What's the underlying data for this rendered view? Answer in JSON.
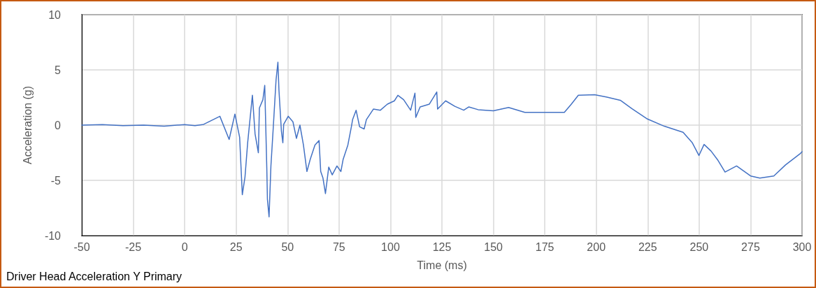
{
  "chart_data": {
    "type": "line",
    "title": "Driver Head Acceleration Y Primary",
    "xlabel": "Time (ms)",
    "ylabel": "Acceleration (g)",
    "xlim": [
      -50,
      300
    ],
    "xticks": [
      -50,
      -25,
      0,
      25,
      50,
      75,
      100,
      125,
      150,
      175,
      200,
      225,
      250,
      275,
      300
    ],
    "ylim": [
      -10,
      10
    ],
    "yticks": [
      -10,
      -5,
      0,
      5,
      10
    ],
    "grid": true,
    "marker": "none",
    "line_style": "solid",
    "series": [
      {
        "color": "#4472c4",
        "x": [
          -50,
          -40,
          -30,
          -20,
          -10,
          0,
          5,
          9.2,
          17.1,
          21.6,
          24.4,
          26.7,
          28.0,
          29.3,
          30.6,
          32.9,
          34.2,
          35.8,
          36.3,
          38.0,
          38.9,
          39.9,
          40.2,
          41.0,
          41.9,
          43.0,
          44.4,
          45.3,
          45.8,
          47.0,
          47.7,
          48.1,
          50.3,
          52.6,
          54.3,
          56.0,
          57.7,
          59.4,
          61.0,
          63.3,
          65.3,
          66.1,
          67.2,
          68.4,
          70.0,
          71.7,
          74.0,
          75.9,
          77.0,
          79.3,
          81.0,
          81.6,
          83.3,
          85.0,
          87.2,
          88.3,
          91.7,
          95.1,
          98.5,
          101.9,
          103.6,
          106.4,
          109.8,
          111.9,
          112.3,
          114.4,
          118.9,
          122.5,
          122.9,
          126.8,
          131.3,
          135.6,
          138.1,
          142.6,
          150,
          157.4,
          165.3,
          174.9,
          184.5,
          187.9,
          191.3,
          199.2,
          204.9,
          211.7,
          217.3,
          224.9,
          233.1,
          242.2,
          246.7,
          249.9,
          252.4,
          255.8,
          259.2,
          262.6,
          268.2,
          275.0,
          279.5,
          286.3,
          292.0,
          299.3,
          300
        ],
        "values": [
          0,
          0.05,
          -0.05,
          0,
          -0.1,
          0.05,
          -0.05,
          0.07,
          0.8,
          -1.3,
          1.0,
          -1.1,
          -6.3,
          -4.7,
          -1.6,
          2.7,
          -0.8,
          -2.5,
          1.55,
          2.3,
          3.6,
          -3.9,
          -6.7,
          -8.3,
          -3.7,
          -0.35,
          4.1,
          5.7,
          3.2,
          -0.55,
          -1.6,
          0.07,
          0.8,
          0.3,
          -1.2,
          0,
          -1.8,
          -4.2,
          -3.1,
          -1.8,
          -1.4,
          -4.2,
          -4.8,
          -6.2,
          -3.8,
          -4.5,
          -3.7,
          -4.2,
          -3.1,
          -1.8,
          -0.15,
          0.5,
          1.35,
          -0.15,
          -0.35,
          0.5,
          1.45,
          1.35,
          1.9,
          2.2,
          2.7,
          2.3,
          1.35,
          2.9,
          0.7,
          1.65,
          1.9,
          3.0,
          1.45,
          2.2,
          1.7,
          1.35,
          1.65,
          1.4,
          1.3,
          1.6,
          1.15,
          1.15,
          1.15,
          1.9,
          2.7,
          2.75,
          2.55,
          2.25,
          1.5,
          0.55,
          -0.1,
          -0.65,
          -1.6,
          -2.75,
          -1.75,
          -2.35,
          -3.2,
          -4.25,
          -3.7,
          -4.6,
          -4.8,
          -4.6,
          -3.6,
          -2.55,
          -2.4
        ]
      }
    ]
  }
}
